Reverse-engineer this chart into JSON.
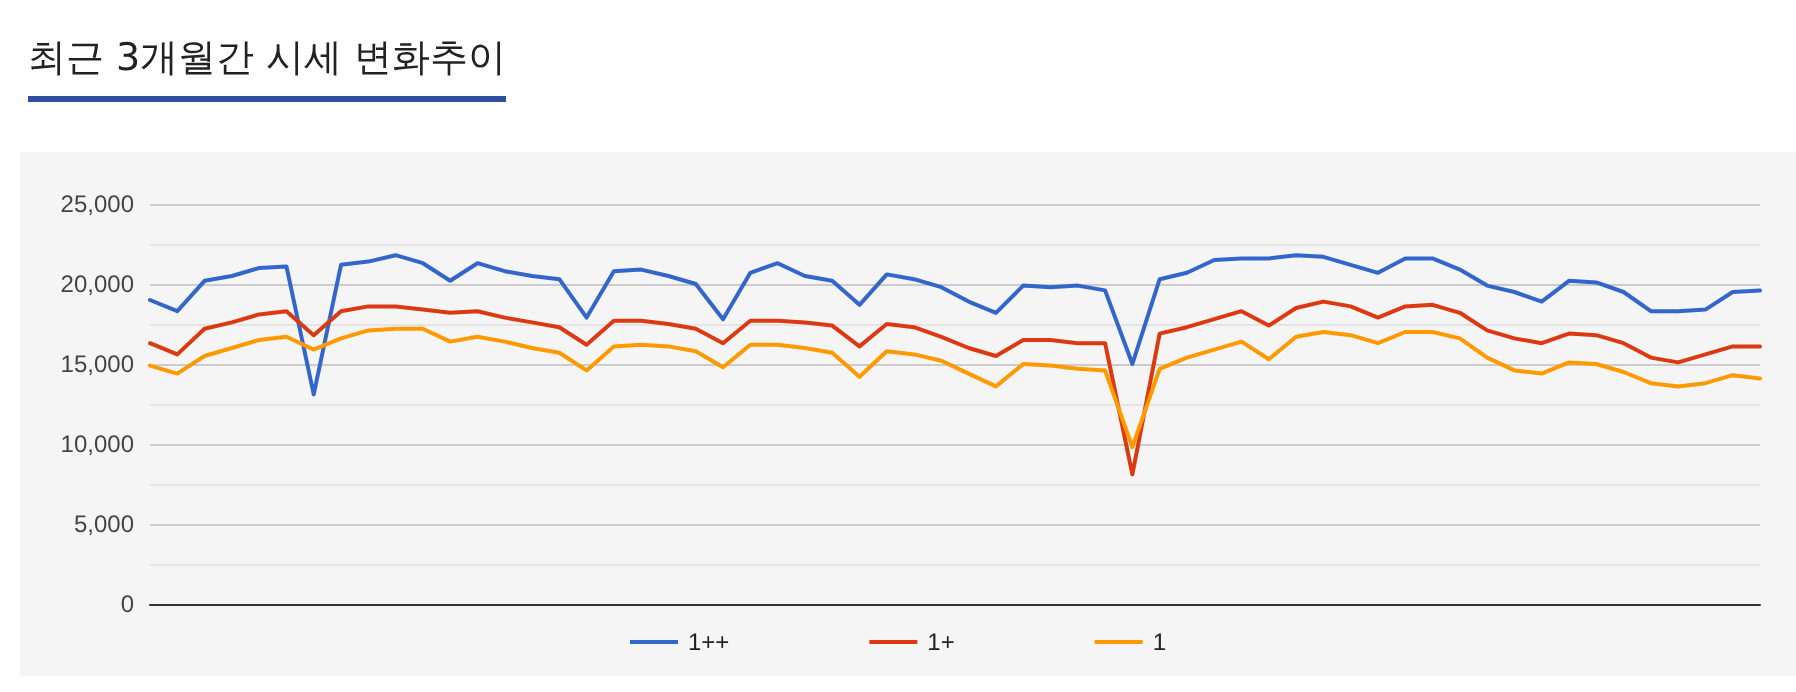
{
  "chart_data": {
    "type": "line",
    "title": "최근 3개월간 시세 변화추이",
    "categories": [
      null,
      null,
      null,
      null,
      null,
      null,
      null,
      null,
      null,
      null,
      null,
      null,
      null,
      null,
      null,
      null,
      null,
      null,
      null,
      null,
      null,
      null,
      null,
      null,
      null,
      null,
      null,
      null,
      null,
      null,
      null,
      null,
      null,
      null,
      null,
      null,
      null,
      null,
      null,
      null,
      null,
      null,
      null,
      null,
      null,
      null,
      null,
      null,
      null,
      null,
      null,
      null,
      null,
      null,
      null,
      null,
      null,
      null,
      null,
      null
    ],
    "series": [
      {
        "name": "1++",
        "color": "#3366cc",
        "values": [
          19000,
          18300,
          20200,
          20500,
          21000,
          21100,
          13100,
          21200,
          21400,
          21800,
          21300,
          20200,
          21300,
          20800,
          20500,
          20300,
          17900,
          20800,
          20900,
          20500,
          20000,
          17800,
          20700,
          21300,
          20500,
          20200,
          18700,
          20600,
          20300,
          19800,
          18900,
          18200,
          19900,
          19800,
          19900,
          19600,
          15000,
          20300,
          20700,
          21500,
          21600,
          21600,
          21800,
          21700,
          21200,
          20700,
          21600,
          21600,
          20900,
          19900,
          19500,
          18900,
          20200,
          20100,
          19500,
          18300,
          18300,
          18400,
          19500,
          19600
        ]
      },
      {
        "name": "1+",
        "color": "#dc3912",
        "values": [
          16300,
          15600,
          17200,
          17600,
          18100,
          18300,
          16800,
          18300,
          18600,
          18600,
          18400,
          18200,
          18300,
          17900,
          17600,
          17300,
          16200,
          17700,
          17700,
          17500,
          17200,
          16300,
          17700,
          17700,
          17600,
          17400,
          16100,
          17500,
          17300,
          16700,
          16000,
          15500,
          16500,
          16500,
          16300,
          16300,
          8100,
          16900,
          17300,
          17800,
          18300,
          17400,
          18500,
          18900,
          18600,
          17900,
          18600,
          18700,
          18200,
          17100,
          16600,
          16300,
          16900,
          16800,
          16300,
          15400,
          15100,
          15600,
          16100,
          16100
        ]
      },
      {
        "name": "1",
        "color": "#ff9900",
        "values": [
          14900,
          14400,
          15500,
          16000,
          16500,
          16700,
          15900,
          16600,
          17100,
          17200,
          17200,
          16400,
          16700,
          16400,
          16000,
          15700,
          14600,
          16100,
          16200,
          16100,
          15800,
          14800,
          16200,
          16200,
          16000,
          15700,
          14200,
          15800,
          15600,
          15200,
          14400,
          13600,
          15000,
          14900,
          14700,
          14600,
          9800,
          14700,
          15400,
          15900,
          16400,
          15300,
          16700,
          17000,
          16800,
          16300,
          17000,
          17000,
          16600,
          15400,
          14600,
          14400,
          15100,
          15000,
          14500,
          13800,
          13600,
          13800,
          14300,
          14100
        ]
      }
    ],
    "ylim": [
      0,
      25000
    ],
    "yticks": [
      0,
      {
        "value": 5000,
        "label": "5,000"
      },
      {
        "value": 10000,
        "label": "10,000"
      },
      {
        "value": 15000,
        "label": "15,000"
      },
      {
        "value": 20000,
        "label": "20,000"
      },
      {
        "value": 25000,
        "label": "25,000"
      }
    ],
    "grid": "y",
    "legend": "bottom",
    "marker": "none",
    "line_style": "solid"
  }
}
